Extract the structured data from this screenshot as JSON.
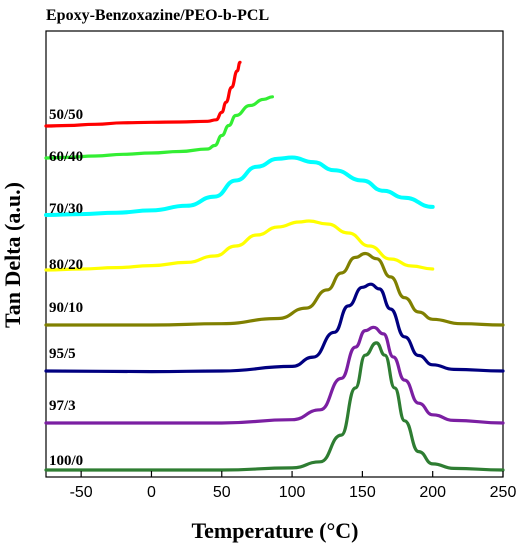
{
  "chart_data": {
    "type": "line",
    "title": "Epoxy-Benzoxazine/PEO-b-PCL",
    "xlabel": "Temperature (°C)",
    "ylabel": "Tan Delta (a.u.)",
    "xlim": [
      -75,
      250
    ],
    "xticks": [
      -50,
      0,
      50,
      100,
      150,
      200,
      250
    ],
    "grid": false,
    "legend": "none; each curve labelled at left",
    "series": [
      {
        "name": "50/50",
        "color": "#ff0000",
        "x": [
          -75,
          -60,
          -40,
          -20,
          0,
          20,
          40,
          46,
          50,
          53,
          57,
          61,
          63
        ],
        "y": [
          0.0,
          0.02,
          0.07,
          0.13,
          0.15,
          0.16,
          0.19,
          0.25,
          0.55,
          0.95,
          1.55,
          2.2,
          2.55
        ]
      },
      {
        "name": "60/40",
        "color": "#33ee33",
        "x": [
          -75,
          -60,
          -40,
          -20,
          0,
          20,
          40,
          45,
          50,
          55,
          60,
          70,
          80,
          86
        ],
        "y": [
          0.0,
          0.03,
          0.08,
          0.15,
          0.2,
          0.26,
          0.36,
          0.5,
          0.9,
          1.3,
          1.7,
          2.1,
          2.35,
          2.45
        ]
      },
      {
        "name": "70/30",
        "color": "#00ffff",
        "x": [
          -75,
          -50,
          -25,
          0,
          25,
          45,
          60,
          75,
          90,
          100,
          115,
          130,
          150,
          165,
          180,
          200
        ],
        "y": [
          0.0,
          0.04,
          0.1,
          0.2,
          0.4,
          0.8,
          1.5,
          2.1,
          2.45,
          2.5,
          2.3,
          1.95,
          1.5,
          1.05,
          0.75,
          0.35
        ]
      },
      {
        "name": "80/20",
        "color": "#ffff00",
        "x": [
          -75,
          -50,
          -25,
          0,
          25,
          45,
          60,
          75,
          90,
          105,
          112,
          125,
          140,
          155,
          170,
          185,
          200
        ],
        "y": [
          0.0,
          0.05,
          0.12,
          0.22,
          0.38,
          0.7,
          1.2,
          1.75,
          2.15,
          2.4,
          2.45,
          2.3,
          1.85,
          1.2,
          0.55,
          0.2,
          0.05
        ]
      },
      {
        "name": "90/10",
        "color": "#808000",
        "x": [
          -75,
          -25,
          0,
          50,
          90,
          110,
          125,
          135,
          145,
          152,
          160,
          170,
          180,
          190,
          200,
          220,
          250
        ],
        "y": [
          0.0,
          0.0,
          0.0,
          0.05,
          0.25,
          0.65,
          1.35,
          2.0,
          2.6,
          2.75,
          2.55,
          1.85,
          1.05,
          0.5,
          0.22,
          0.05,
          0.0
        ]
      },
      {
        "name": "95/5",
        "color": "#000080",
        "x": [
          -75,
          0,
          50,
          100,
          115,
          130,
          140,
          150,
          156,
          162,
          170,
          180,
          190,
          200,
          215,
          250
        ],
        "y": [
          0.0,
          -0.02,
          0.0,
          0.15,
          0.45,
          1.25,
          2.1,
          2.7,
          2.8,
          2.65,
          2.0,
          1.1,
          0.5,
          0.2,
          0.05,
          0.0
        ]
      },
      {
        "name": "97/3",
        "color": "#7b1fa2",
        "x": [
          -75,
          0,
          50,
          100,
          120,
          135,
          145,
          152,
          158,
          165,
          172,
          180,
          190,
          200,
          215,
          250
        ],
        "y": [
          0.0,
          0.0,
          0.0,
          0.1,
          0.4,
          1.35,
          2.3,
          2.8,
          2.9,
          2.7,
          2.0,
          1.3,
          0.6,
          0.25,
          0.08,
          0.0
        ]
      },
      {
        "name": "100/0",
        "color": "#2e7d32",
        "x": [
          -75,
          0,
          50,
          100,
          120,
          135,
          145,
          152,
          160,
          166,
          173,
          180,
          190,
          200,
          215,
          250
        ],
        "y": [
          0.0,
          0.0,
          0.0,
          0.05,
          0.2,
          0.85,
          2.0,
          2.8,
          3.1,
          2.8,
          2.0,
          1.2,
          0.45,
          0.15,
          0.04,
          0.0
        ]
      }
    ]
  }
}
